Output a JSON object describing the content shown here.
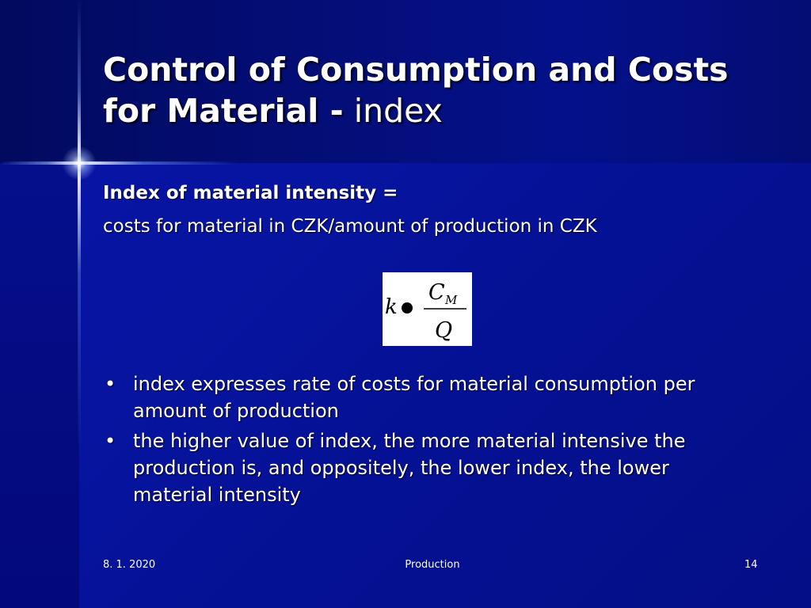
{
  "slide": {
    "title_bold": "Control of Consumption and Costs for Material -",
    "title_rest": " index",
    "heading": "Index of material intensity =",
    "subline": "costs for material in CZK/amount of production in CZK",
    "formula": {
      "lhs": "k",
      "numerator_main": "C",
      "numerator_sub": "M",
      "denominator": "Q"
    },
    "bullets": [
      "index expresses rate of costs for material consumption per amount of production",
      "the higher value of index, the more material intensive the production is, and oppositely, the lower index, the lower material intensity"
    ],
    "footer": {
      "date": "8. 1. 2020",
      "center": "Production",
      "page": "14"
    }
  }
}
